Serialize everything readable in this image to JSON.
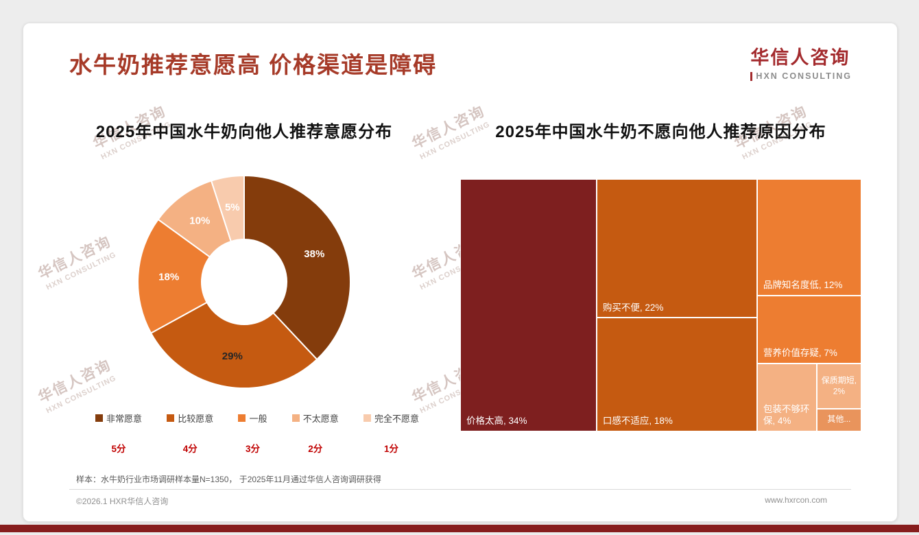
{
  "header": {
    "title": "水牛奶推荐意愿高 价格渠道是障碍",
    "logo": {
      "name": "华信人咨询",
      "tagline": "HXN CONSULTING"
    }
  },
  "watermark": {
    "line1": "华信人咨询",
    "line2": "HXN CONSULTING"
  },
  "footnote": "样本：水牛奶行业市场调研样本量N=1350， 于2025年11月通过华信人咨询调研获得",
  "footer": {
    "copyright": "©2026.1 HXR华信人咨询",
    "website": "www.hxrcon.com"
  },
  "theme": {
    "title_color": "#A63A28",
    "score_color": "#C00000",
    "accent_bar_color": "#871D1D"
  },
  "chart_data": [
    {
      "type": "pie",
      "subtype": "donut",
      "title": "2025年中国水牛奶向他人推荐意愿分布",
      "categories": [
        "非常愿意",
        "比较愿意",
        "一般",
        "不太愿意",
        "完全不愿意"
      ],
      "values": [
        38,
        29,
        18,
        10,
        5
      ],
      "data_labels": [
        "38%",
        "29%",
        "18%",
        "10%",
        "5%"
      ],
      "score_labels": [
        "5分",
        "4分",
        "3分",
        "2分",
        "1分"
      ],
      "colors": [
        "#843C0C",
        "#C55A11",
        "#ED7D31",
        "#F4B183",
        "#F8CBAD"
      ],
      "data_label_colors": [
        "#ffffff",
        "#262626",
        "#ffffff",
        "#ffffff",
        "#ffffff"
      ],
      "legend_position": "bottom",
      "start_angle": 0,
      "direction": "clockwise"
    },
    {
      "type": "treemap",
      "title": "2025年中国水牛奶不愿向他人推荐原因分布",
      "items": [
        {
          "name": "价格太高",
          "value": 34,
          "label": "价格太高, 34%",
          "color": "#7E1F1F",
          "label_align": "bottom-left"
        },
        {
          "name": "购买不便",
          "value": 22,
          "label": "购买不便, 22%",
          "color": "#C55A11",
          "label_align": "bottom-left"
        },
        {
          "name": "口感不适应",
          "value": 18,
          "label": "口感不适应, 18%",
          "color": "#C55A11",
          "label_align": "bottom-left"
        },
        {
          "name": "品牌知名度低",
          "value": 12,
          "label": "品牌知名度低, 12%",
          "color": "#ED7D31",
          "label_align": "bottom-left"
        },
        {
          "name": "营养价值存疑",
          "value": 7,
          "label": "营养价值存疑, 7%",
          "color": "#ED7D31",
          "label_align": "bottom-left"
        },
        {
          "name": "包装不够环保",
          "value": 4,
          "label": "包装不够环保, 4%",
          "color": "#F4B183",
          "label_align": "bottom-left"
        },
        {
          "name": "保质期短",
          "value": 2,
          "label": "保质期短, 2%",
          "color": "#F4B183",
          "label_align": "center"
        },
        {
          "name": "其他",
          "value": 1,
          "label": "其他...",
          "color": "#E9945C",
          "label_align": "center"
        }
      ],
      "layout": {
        "dir": "row",
        "children": [
          {
            "item": 0
          },
          {
            "dir": "column",
            "children": [
              {
                "item": 1
              },
              {
                "item": 2
              }
            ]
          },
          {
            "dir": "column",
            "children": [
              {
                "item": 3
              },
              {
                "item": 4
              },
              {
                "dir": "row",
                "children": [
                  {
                    "item": 5
                  },
                  {
                    "dir": "column",
                    "children": [
                      {
                        "item": 6
                      },
                      {
                        "item": 7
                      }
                    ]
                  }
                ]
              }
            ]
          }
        ]
      }
    }
  ]
}
